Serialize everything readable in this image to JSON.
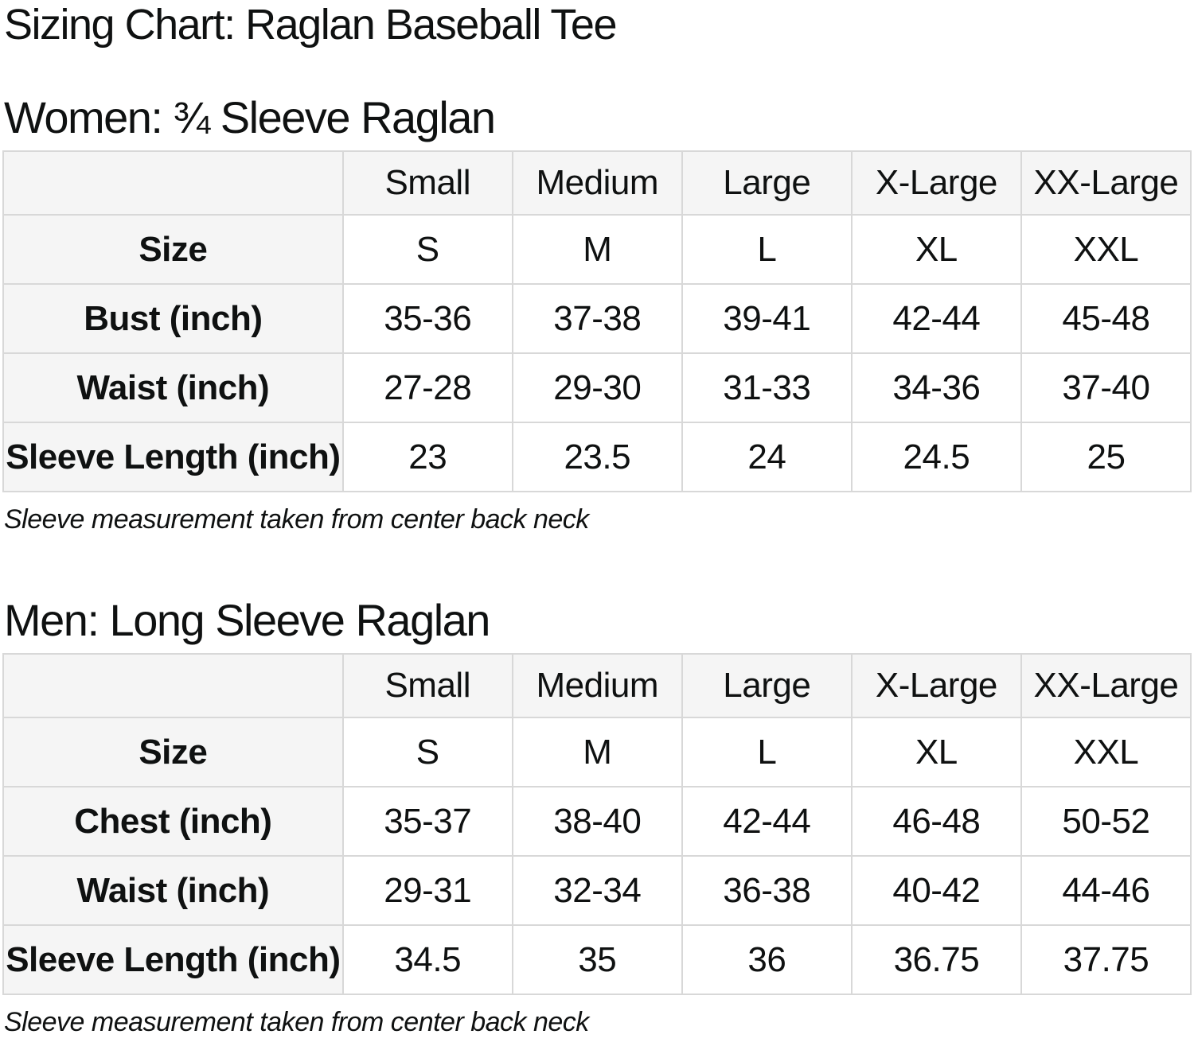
{
  "page_title": "Sizing Chart: Raglan Baseball Tee",
  "colors": {
    "text": "#0f1111",
    "table_header_bg": "#f5f5f5",
    "table_border": "#d8d8d8",
    "background": "#ffffff"
  },
  "sections": {
    "women": {
      "heading": "Women: ¾ Sleeve Raglan",
      "columns": [
        "",
        "Small",
        "Medium",
        "Large",
        "X-Large",
        "XX-Large"
      ],
      "rows": [
        {
          "label": "Size",
          "values": [
            "S",
            "M",
            "L",
            "XL",
            "XXL"
          ]
        },
        {
          "label": "Bust (inch)",
          "values": [
            "35-36",
            "37-38",
            "39-41",
            "42-44",
            "45-48"
          ]
        },
        {
          "label": "Waist (inch)",
          "values": [
            "27-28",
            "29-30",
            "31-33",
            "34-36",
            "37-40"
          ]
        },
        {
          "label": "Sleeve Length (inch)",
          "values": [
            "23",
            "23.5",
            "24",
            "24.5",
            "25"
          ]
        }
      ],
      "note": "Sleeve measurement taken from center back neck"
    },
    "men": {
      "heading": "Men: Long Sleeve Raglan",
      "columns": [
        "",
        "Small",
        "Medium",
        "Large",
        "X-Large",
        "XX-Large"
      ],
      "rows": [
        {
          "label": "Size",
          "values": [
            "S",
            "M",
            "L",
            "XL",
            "XXL"
          ]
        },
        {
          "label": "Chest (inch)",
          "values": [
            "35-37",
            "38-40",
            "42-44",
            "46-48",
            "50-52"
          ]
        },
        {
          "label": "Waist (inch)",
          "values": [
            "29-31",
            "32-34",
            "36-38",
            "40-42",
            "44-46"
          ]
        },
        {
          "label": "Sleeve Length (inch)",
          "values": [
            "34.5",
            "35",
            "36",
            "36.75",
            "37.75"
          ]
        }
      ],
      "note": "Sleeve measurement taken from center back neck"
    }
  }
}
